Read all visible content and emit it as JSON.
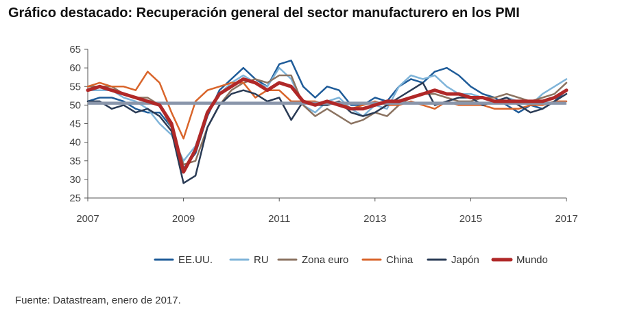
{
  "title": "Gráfico destacado: Recuperación general del sector manufacturero en los PMI",
  "source": "Fuente: Datastream, enero de 2017.",
  "chart_data": {
    "type": "line",
    "title": "Gráfico destacado: Recuperación general del sector manufacturero en los PMI",
    "xlabel": "",
    "ylabel": "",
    "xlim": [
      2007,
      2017
    ],
    "ylim": [
      25,
      65
    ],
    "yticks": [
      25,
      30,
      35,
      40,
      45,
      50,
      55,
      60,
      65
    ],
    "xticks": [
      "2007",
      "2009",
      "2011",
      "2013",
      "2015",
      "2017"
    ],
    "xtick_values": [
      2007,
      2009,
      2011,
      2013,
      2015,
      2017
    ],
    "reference_line": 50.5,
    "grid": false,
    "legend_position": "bottom",
    "x": [
      2007.0,
      2007.25,
      2007.5,
      2007.75,
      2008.0,
      2008.25,
      2008.5,
      2008.75,
      2009.0,
      2009.25,
      2009.5,
      2009.75,
      2010.0,
      2010.25,
      2010.5,
      2010.75,
      2011.0,
      2011.25,
      2011.5,
      2011.75,
      2012.0,
      2012.25,
      2012.5,
      2012.75,
      2013.0,
      2013.25,
      2013.5,
      2013.75,
      2014.0,
      2014.25,
      2014.5,
      2014.75,
      2015.0,
      2015.25,
      2015.5,
      2015.75,
      2016.0,
      2016.25,
      2016.5,
      2016.75,
      2017.0
    ],
    "series": [
      {
        "name": "EE.UU.",
        "color": "#1f5c99",
        "width": 2.5,
        "values": [
          51,
          52,
          52,
          51,
          49,
          48,
          48,
          44,
          33,
          37,
          47,
          54,
          57,
          60,
          57,
          55,
          61,
          62,
          55,
          52,
          55,
          54,
          50,
          50,
          52,
          51,
          55,
          57,
          56,
          59,
          60,
          58,
          55,
          53,
          52,
          50,
          48,
          50,
          49,
          51,
          54
        ]
      },
      {
        "name": "RU",
        "color": "#7fb4d9",
        "width": 2.5,
        "values": [
          54,
          54,
          54,
          52,
          51,
          49,
          45,
          42,
          35,
          39,
          48,
          53,
          56,
          58,
          56,
          55,
          60,
          57,
          50,
          48,
          51,
          52,
          49,
          47,
          50,
          49,
          55,
          58,
          57,
          58,
          55,
          53,
          53,
          52,
          51,
          52,
          51,
          50,
          53,
          55,
          57
        ]
      },
      {
        "name": "Zona euro",
        "color": "#8b7361",
        "width": 2.5,
        "values": [
          55,
          55,
          55,
          53,
          52,
          52,
          50,
          44,
          34,
          35,
          44,
          50,
          54,
          56,
          57,
          56,
          58,
          58,
          50,
          47,
          49,
          47,
          45,
          46,
          48,
          47,
          50,
          52,
          53,
          53,
          52,
          51,
          51,
          52,
          52,
          53,
          52,
          51,
          52,
          53,
          56
        ]
      },
      {
        "name": "China",
        "color": "#d9652b",
        "width": 2.5,
        "values": [
          55,
          56,
          55,
          55,
          54,
          59,
          56,
          48,
          41,
          51,
          54,
          55,
          56,
          56,
          52,
          54,
          54,
          51,
          51,
          51,
          50,
          51,
          49,
          50,
          51,
          50,
          50,
          51,
          50,
          49,
          51,
          50,
          50,
          50,
          49,
          49,
          49,
          50,
          50,
          51,
          51
        ]
      },
      {
        "name": "Japón",
        "color": "#2a3b55",
        "width": 2.5,
        "values": [
          51,
          51,
          49,
          50,
          48,
          49,
          47,
          43,
          29,
          31,
          44,
          50,
          53,
          54,
          53,
          51,
          52,
          46,
          51,
          50,
          50,
          51,
          48,
          47,
          48,
          50,
          52,
          54,
          56,
          50,
          51,
          52,
          52,
          50,
          51,
          52,
          50,
          48,
          49,
          51,
          53
        ]
      },
      {
        "name": "Mundo",
        "color": "#b02828",
        "width": 5,
        "values": [
          54,
          55,
          54,
          53,
          52,
          51,
          50,
          45,
          32,
          38,
          48,
          53,
          55,
          57,
          56,
          54,
          56,
          55,
          51,
          50,
          51,
          50,
          49,
          49,
          50,
          51,
          51,
          52,
          53,
          54,
          53,
          53,
          52,
          52,
          51,
          51,
          51,
          51,
          51,
          52,
          54
        ]
      }
    ]
  }
}
